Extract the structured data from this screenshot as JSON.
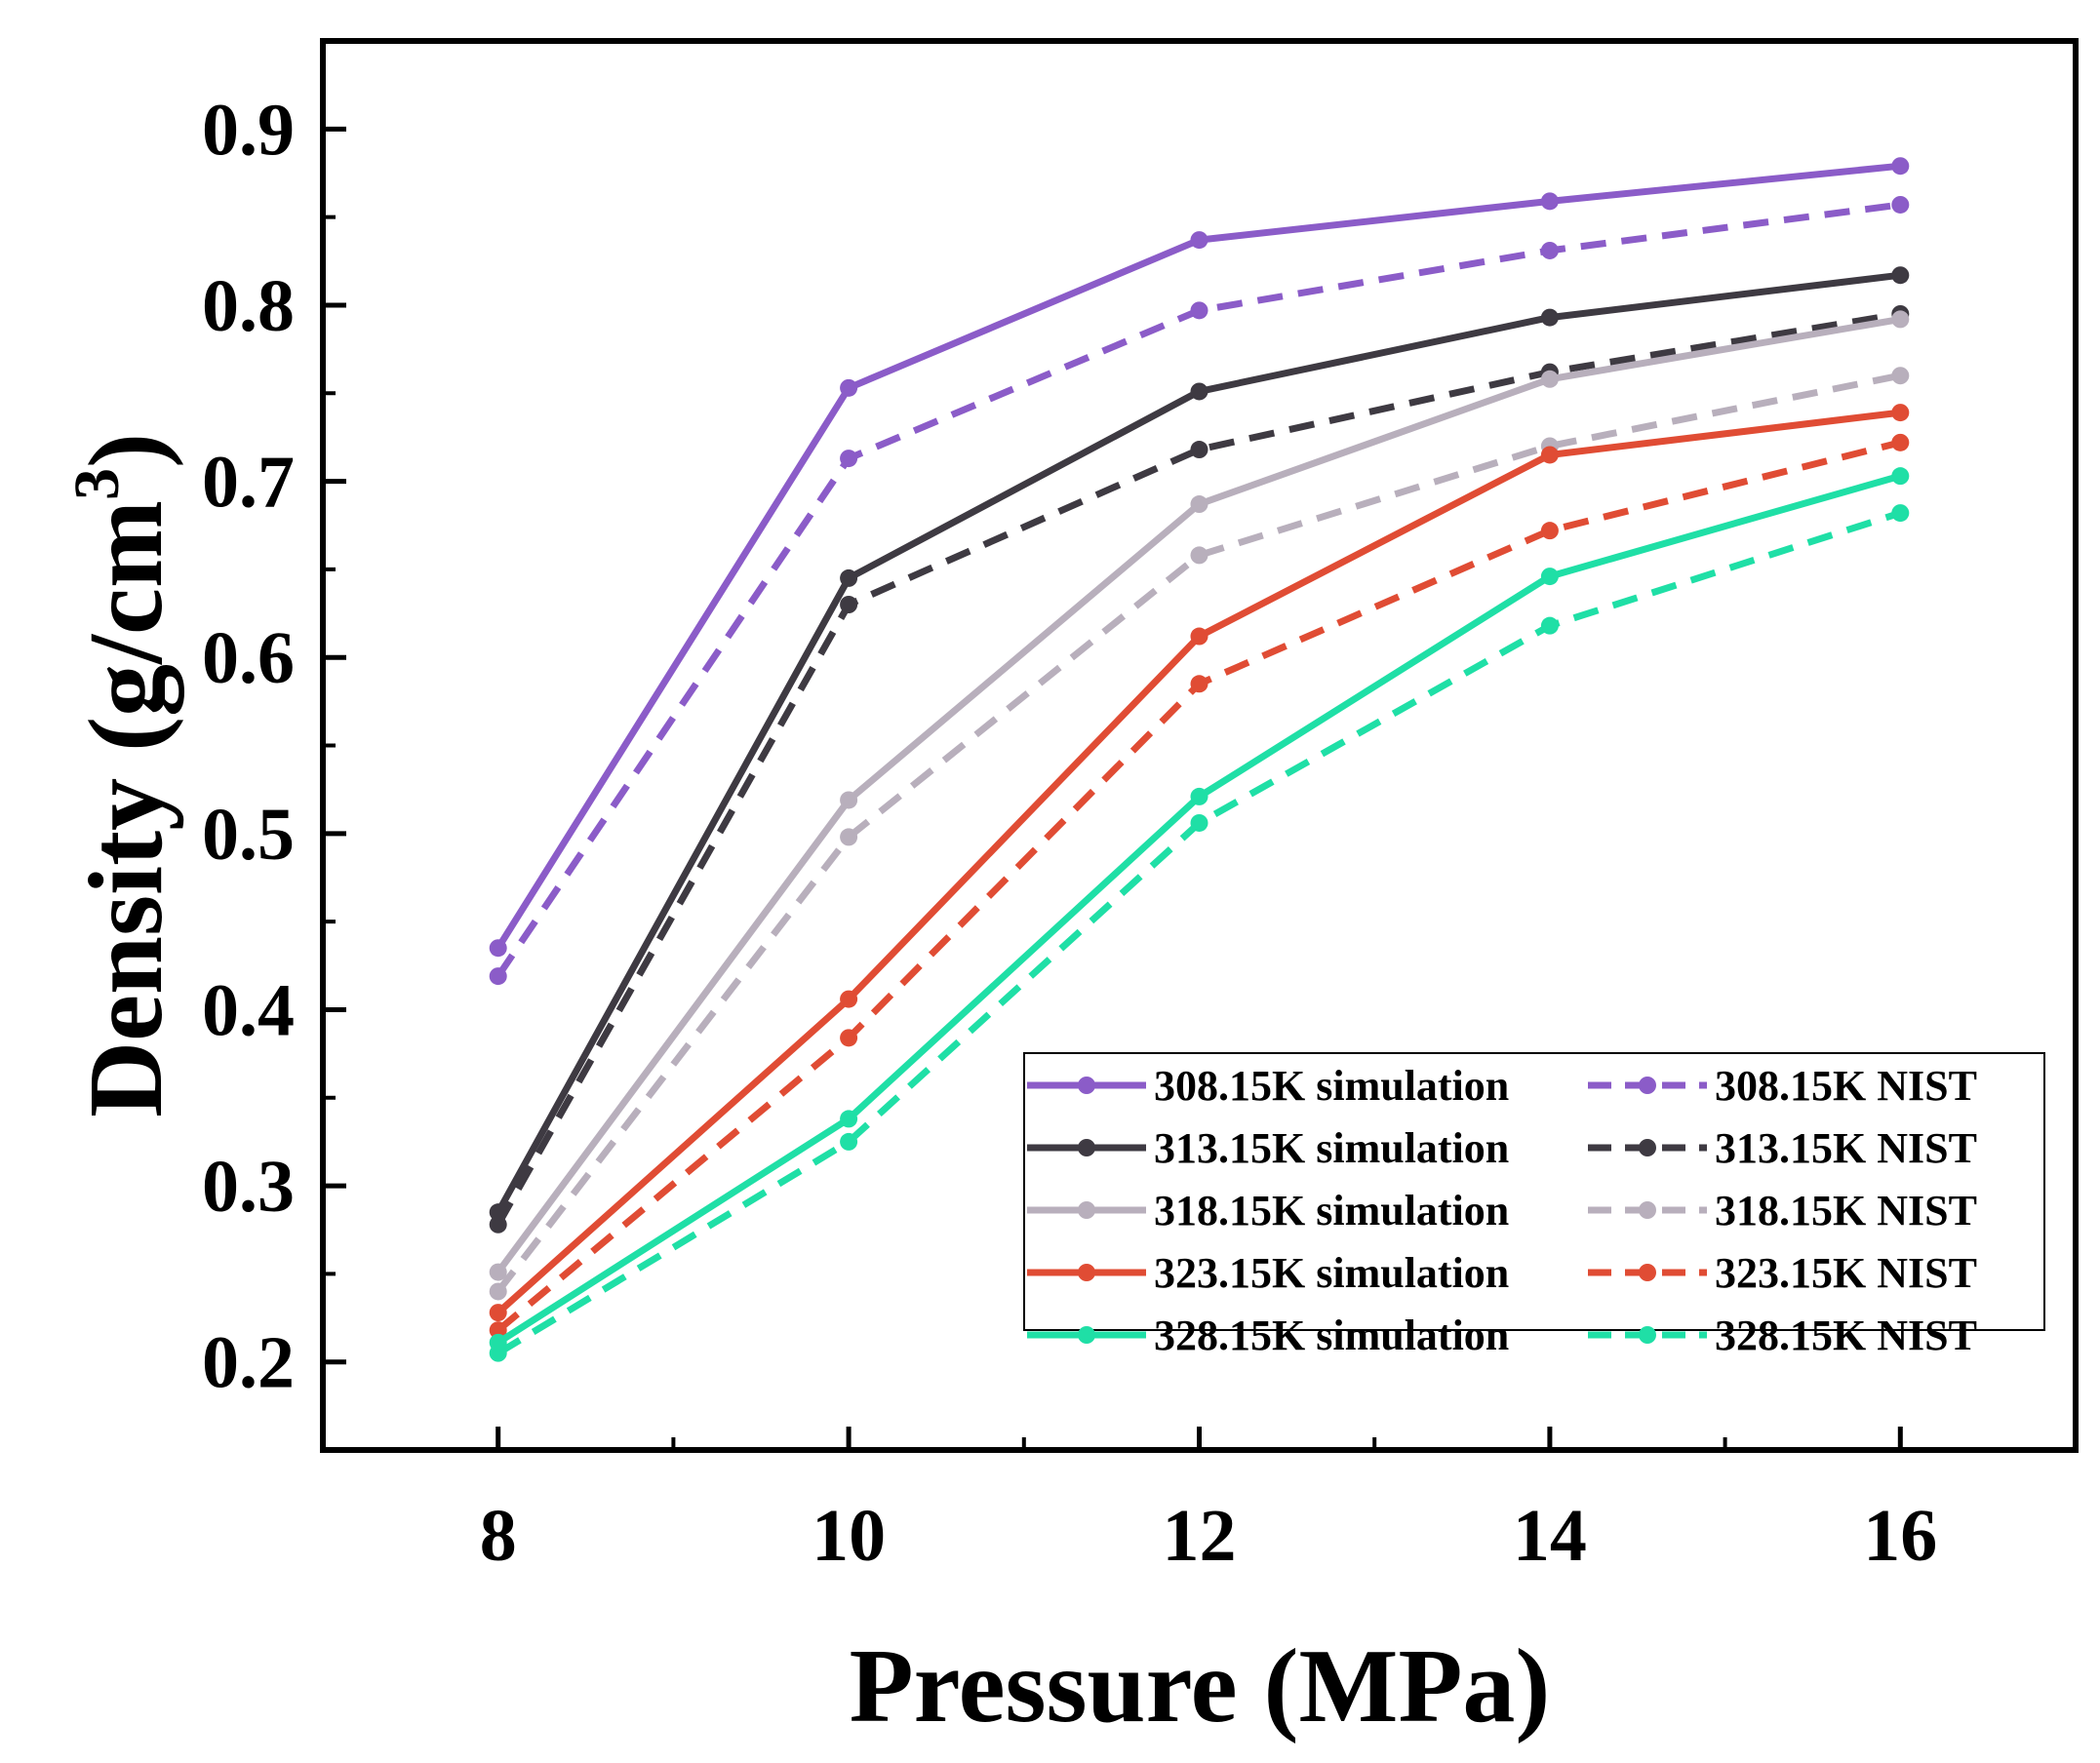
{
  "chart_data": {
    "type": "line",
    "title": "",
    "xlabel": "Pressure (MPa)",
    "ylabel": "Density (g/cm",
    "ylabel_sup": "3",
    "ylabel_close": ")",
    "xlim": [
      7,
      17
    ],
    "ylim": [
      0.15,
      0.95
    ],
    "xticks": [
      8,
      10,
      12,
      14,
      16
    ],
    "xtick_labels": [
      "8",
      "10",
      "12",
      "14",
      "16"
    ],
    "yticks": [
      0.2,
      0.3,
      0.4,
      0.5,
      0.6,
      0.7,
      0.8,
      0.9
    ],
    "ytick_labels": [
      "0.2",
      "0.3",
      "0.4",
      "0.5",
      "0.6",
      "0.7",
      "0.8",
      "0.9"
    ],
    "grid": false,
    "legend_position": "bottom-right",
    "x": [
      8,
      10,
      12,
      14,
      16
    ],
    "series": [
      {
        "name": "308.15K simulation",
        "color": "#8B5CC8",
        "dash": false,
        "values": [
          0.435,
          0.753,
          0.837,
          0.859,
          0.879
        ]
      },
      {
        "name": "313.15K simulation",
        "color": "#3E3A42",
        "dash": false,
        "values": [
          0.285,
          0.645,
          0.751,
          0.793,
          0.817
        ]
      },
      {
        "name": "318.15K simulation",
        "color": "#B8AFBC",
        "dash": false,
        "values": [
          0.251,
          0.519,
          0.687,
          0.758,
          0.792
        ]
      },
      {
        "name": "323.15K simulation",
        "color": "#E04C34",
        "dash": false,
        "values": [
          0.228,
          0.406,
          0.612,
          0.715,
          0.739
        ]
      },
      {
        "name": "328.15K simulation",
        "color": "#1FDFA6",
        "dash": false,
        "values": [
          0.211,
          0.338,
          0.521,
          0.646,
          0.703
        ]
      },
      {
        "name": "308.15K NIST",
        "color": "#8B5CC8",
        "dash": true,
        "values": [
          0.419,
          0.713,
          0.797,
          0.831,
          0.857
        ]
      },
      {
        "name": "313.15K NIST",
        "color": "#3E3A42",
        "dash": true,
        "values": [
          0.278,
          0.63,
          0.718,
          0.762,
          0.795
        ]
      },
      {
        "name": "318.15K NIST",
        "color": "#B8AFBC",
        "dash": true,
        "values": [
          0.24,
          0.498,
          0.658,
          0.72,
          0.76
        ]
      },
      {
        "name": "323.15K NIST",
        "color": "#E04C34",
        "dash": true,
        "values": [
          0.218,
          0.384,
          0.585,
          0.672,
          0.722
        ]
      },
      {
        "name": "328.15K NIST",
        "color": "#1FDFA6",
        "dash": true,
        "values": [
          0.205,
          0.325,
          0.506,
          0.618,
          0.682
        ]
      }
    ]
  }
}
